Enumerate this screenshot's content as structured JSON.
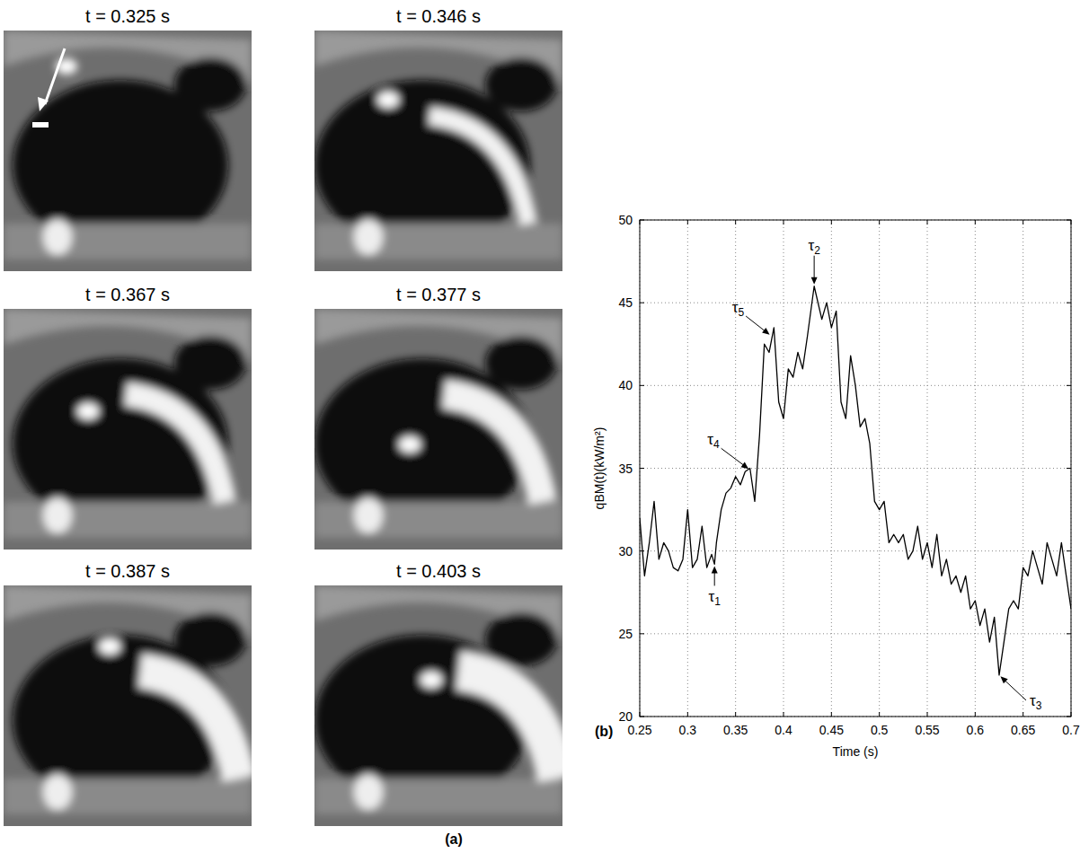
{
  "image_panels": {
    "label": "(a)",
    "frames": [
      {
        "title": "t = 0.325 s"
      },
      {
        "title": "t = 0.346 s"
      },
      {
        "title": "t = 0.367 s"
      },
      {
        "title": "t = 0.377 s"
      },
      {
        "title": "t = 0.387 s"
      },
      {
        "title": "t = 0.403 s"
      }
    ]
  },
  "chart_data": {
    "type": "line",
    "panel_label": "(b)",
    "x_label": "Time (s)",
    "y_label": "qBM(t)(kW/m²)",
    "xlim": [
      0.25,
      0.7
    ],
    "ylim": [
      20,
      50
    ],
    "xticks": [
      0.25,
      0.3,
      0.35,
      0.4,
      0.45,
      0.5,
      0.55,
      0.6,
      0.65,
      0.7
    ],
    "yticks": [
      20,
      25,
      30,
      35,
      40,
      45,
      50
    ],
    "grid": true,
    "series": [
      {
        "name": "qBM(t)",
        "color": "#000000",
        "x": [
          0.25,
          0.255,
          0.26,
          0.265,
          0.27,
          0.275,
          0.28,
          0.285,
          0.29,
          0.295,
          0.3,
          0.305,
          0.31,
          0.315,
          0.32,
          0.325,
          0.328,
          0.33,
          0.335,
          0.34,
          0.345,
          0.35,
          0.355,
          0.36,
          0.365,
          0.37,
          0.375,
          0.38,
          0.385,
          0.39,
          0.395,
          0.4,
          0.405,
          0.41,
          0.415,
          0.42,
          0.425,
          0.432,
          0.44,
          0.445,
          0.45,
          0.455,
          0.46,
          0.465,
          0.47,
          0.475,
          0.48,
          0.485,
          0.49,
          0.495,
          0.5,
          0.505,
          0.51,
          0.515,
          0.52,
          0.525,
          0.53,
          0.535,
          0.54,
          0.545,
          0.55,
          0.555,
          0.56,
          0.565,
          0.57,
          0.575,
          0.58,
          0.585,
          0.59,
          0.595,
          0.6,
          0.605,
          0.61,
          0.615,
          0.62,
          0.625,
          0.63,
          0.635,
          0.64,
          0.645,
          0.65,
          0.655,
          0.66,
          0.665,
          0.67,
          0.675,
          0.68,
          0.685,
          0.69,
          0.695,
          0.7
        ],
        "values": [
          32,
          28.5,
          30.5,
          33,
          29.5,
          30.5,
          30,
          29,
          28.8,
          29.5,
          32.5,
          29,
          29.5,
          31.5,
          29,
          29.8,
          29.2,
          30.5,
          32.5,
          33.5,
          33.8,
          34.5,
          34,
          34.8,
          35,
          33,
          37,
          42.5,
          42,
          43.5,
          39,
          38,
          41,
          40.5,
          42,
          41,
          43,
          46,
          44,
          45,
          43.5,
          44.5,
          39,
          38,
          41.8,
          40,
          37.5,
          38,
          36.5,
          33,
          32.5,
          33,
          30.5,
          31,
          30.5,
          31,
          29.5,
          30,
          31.5,
          29.5,
          30.5,
          29,
          31,
          28.5,
          29.5,
          28,
          28.5,
          27.5,
          28.5,
          26.5,
          27,
          25.5,
          26.5,
          24.5,
          26,
          22.5,
          24.5,
          26.5,
          27,
          26.5,
          29,
          28.5,
          30,
          29,
          28,
          30.5,
          29.5,
          28.5,
          30.5,
          28.5,
          26.5
        ]
      }
    ],
    "annotations": [
      {
        "label": "τ1",
        "x": 0.328,
        "y": 29.2
      },
      {
        "label": "τ2",
        "x": 0.432,
        "y": 46
      },
      {
        "label": "τ3",
        "x": 0.625,
        "y": 22.5
      },
      {
        "label": "τ4",
        "x": 0.365,
        "y": 34.9
      },
      {
        "label": "τ5",
        "x": 0.387,
        "y": 43
      }
    ]
  }
}
